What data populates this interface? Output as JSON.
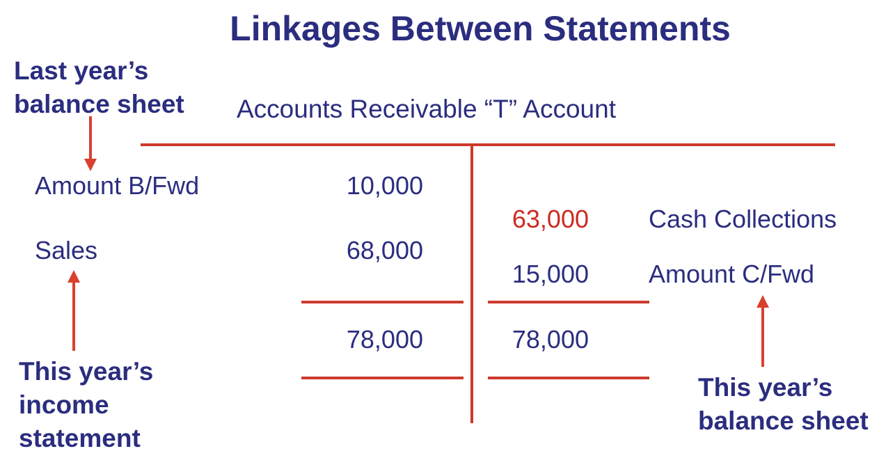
{
  "title": "Linkages Between Statements",
  "labels": {
    "last_year": [
      "Last year’s",
      "balance sheet"
    ],
    "this_year_income": [
      "This year’s",
      "income",
      "statement"
    ],
    "this_year_balance": [
      "This year’s",
      "balance sheet"
    ]
  },
  "t_account": {
    "heading": "Accounts Receivable “T” Account",
    "debit_entries": [
      {
        "label": "Amount B/Fwd",
        "amount": "10,000"
      },
      {
        "label": "Sales",
        "amount": "68,000"
      }
    ],
    "credit_entries": [
      {
        "label": "Cash Collections",
        "amount": "63,000",
        "highlight": true
      },
      {
        "label": "Amount C/Fwd",
        "amount": "15,000"
      }
    ],
    "debit_total": "78,000",
    "credit_total": "78,000"
  },
  "colors": {
    "text": "#2b2d7f",
    "line": "#cc3a2c",
    "highlight": "#cc2a22"
  }
}
